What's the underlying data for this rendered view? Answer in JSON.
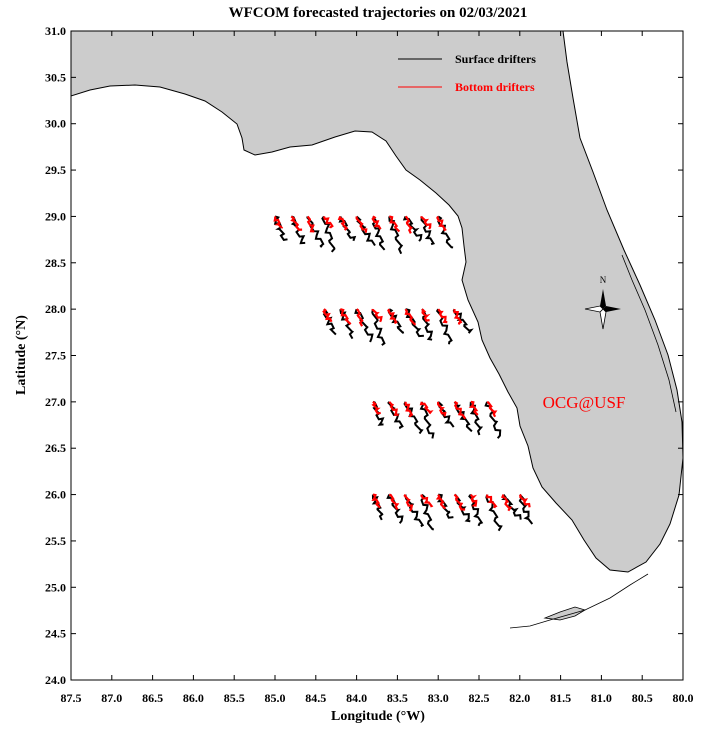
{
  "title": "WFCOM forecasted trajectories on 02/03/2021",
  "xlabel": "Longitude (°W)",
  "ylabel": "Latitude (°N)",
  "legend": {
    "surface": "Surface drifters",
    "bottom": "Bottom drifters"
  },
  "watermark": "OCG@USF",
  "compass_label": "N",
  "colors": {
    "land": "#cccccc",
    "surface": "#000000",
    "bottom": "#ff0000",
    "watermark": "#ff0000"
  },
  "chart_data": {
    "type": "map",
    "xlim": [
      87.5,
      80.0
    ],
    "ylim": [
      24.0,
      31.0
    ],
    "x_ticks": [
      "87.5",
      "87.0",
      "86.5",
      "86.0",
      "85.5",
      "85.0",
      "84.5",
      "84.0",
      "83.5",
      "83.0",
      "82.5",
      "82.0",
      "81.5",
      "81.0",
      "80.5",
      "80.0"
    ],
    "y_ticks": [
      "31.0",
      "30.5",
      "30.0",
      "29.5",
      "29.0",
      "28.5",
      "28.0",
      "27.5",
      "27.0",
      "26.5",
      "26.0",
      "25.5",
      "25.0",
      "24.5",
      "24.0"
    ],
    "release_rows": [
      {
        "lat": 29.0,
        "start_lons": [
          85.0,
          84.8,
          84.6,
          84.4,
          84.2,
          84.0,
          83.8,
          83.6,
          83.4,
          83.2,
          83.0
        ]
      },
      {
        "lat": 28.0,
        "start_lons": [
          84.4,
          84.2,
          84.0,
          83.8,
          83.6,
          83.4,
          83.2,
          83.0,
          82.8
        ]
      },
      {
        "lat": 27.0,
        "start_lons": [
          83.8,
          83.6,
          83.4,
          83.2,
          83.0,
          82.8,
          82.6,
          82.4
        ]
      },
      {
        "lat": 26.0,
        "start_lons": [
          83.8,
          83.6,
          83.4,
          83.2,
          83.0,
          82.8,
          82.6,
          82.4,
          82.2,
          82.0
        ]
      }
    ]
  }
}
